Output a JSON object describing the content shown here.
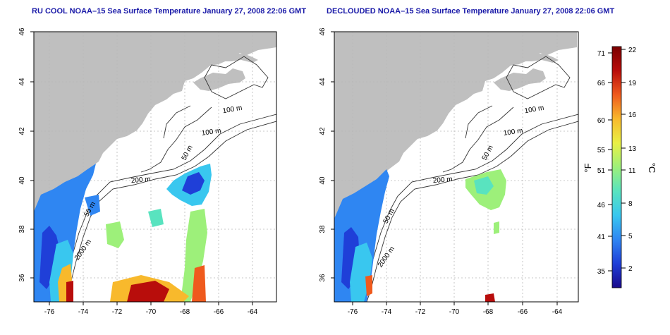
{
  "panels": [
    {
      "title": "RU COOL NOAA–15 Sea Surface Temperature January 27, 2008 22:06 GMT",
      "x_ticks": [
        "-76",
        "-74",
        "-72",
        "-70",
        "-68",
        "-66",
        "-64"
      ],
      "y_ticks": [
        "46",
        "44",
        "42",
        "40",
        "38",
        "36"
      ],
      "contour_labels": [
        "100 m",
        "100 m",
        "50 m",
        "200 m",
        "50 m",
        "2000 m"
      ]
    },
    {
      "title": "DECLOUDED NOAA–15 Sea Surface Temperature January 27, 2008 22:06 GMT",
      "x_ticks": [
        "-76",
        "-74",
        "-72",
        "-70",
        "-68",
        "-66",
        "-64"
      ],
      "y_ticks": [
        "46",
        "44",
        "42",
        "40",
        "38",
        "36"
      ],
      "contour_labels": [
        "100 m",
        "100 m",
        "50 m",
        "200 m",
        "50 m",
        "2000 m"
      ]
    }
  ],
  "colorbar": {
    "fahrenheit_label": "°F",
    "celsius_label": "°C",
    "fahrenheit_ticks": [
      "71",
      "66",
      "60",
      "55",
      "51",
      "46",
      "41",
      "35"
    ],
    "celsius_ticks": [
      "22",
      "19",
      "16",
      "13",
      "11",
      "8",
      "5",
      "2"
    ],
    "colors": [
      "#1a0a8c",
      "#1f3fd8",
      "#2f86f2",
      "#39c7ef",
      "#59e3bf",
      "#9df07a",
      "#e9f044",
      "#f8b92c",
      "#ef5a1d",
      "#b80d0b",
      "#7a0000"
    ]
  },
  "colors": {
    "land": "#bfbfbf",
    "ocean": "#ffffff",
    "title": "#1a1aa8",
    "grid": "#b8b8b8"
  }
}
